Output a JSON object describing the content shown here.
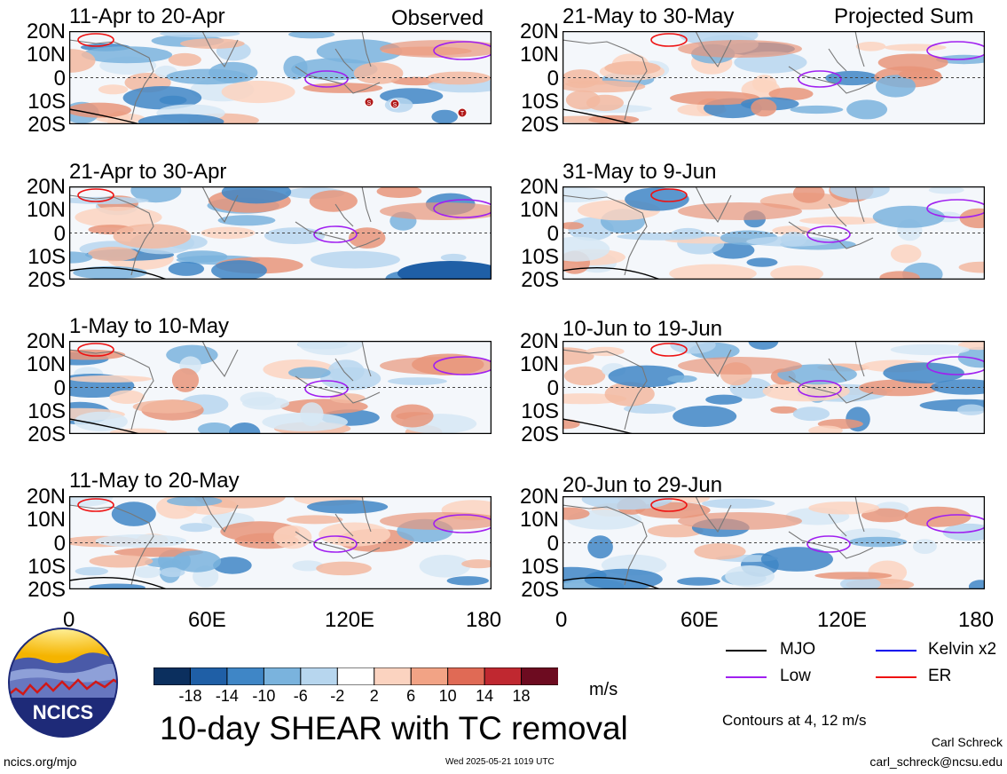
{
  "columns": {
    "left_tag": "Observed",
    "right_tag": "Projected Sum"
  },
  "panels_left": [
    {
      "title": "11-Apr to 20-Apr"
    },
    {
      "title": "21-Apr to 30-Apr"
    },
    {
      "title": "1-May to 10-May"
    },
    {
      "title": "11-May to 20-May"
    }
  ],
  "panels_right": [
    {
      "title": "21-May to 30-May"
    },
    {
      "title": "31-May to 9-Jun"
    },
    {
      "title": "10-Jun to 19-Jun"
    },
    {
      "title": "20-Jun to 29-Jun"
    }
  ],
  "lat_labels": [
    "20N",
    "10N",
    "0",
    "10S",
    "20S"
  ],
  "lon_labels": [
    "0",
    "60E",
    "120E",
    "180"
  ],
  "tc_markers": [
    "S",
    "S",
    "T"
  ],
  "legend": {
    "items": [
      {
        "label": "MJO",
        "color": "#000000"
      },
      {
        "label": "Kelvin x2",
        "color": "#0000ee"
      },
      {
        "label": "Low",
        "color": "#a020f0"
      },
      {
        "label": "ER",
        "color": "#ee1111"
      }
    ],
    "contours_note": "Contours at 4, 12 m/s"
  },
  "colorbar": {
    "unit": "m/s",
    "ticks": [
      "-18",
      "-14",
      "-10",
      "-6",
      "-2",
      "2",
      "6",
      "10",
      "14",
      "18"
    ],
    "colors": [
      "#0b2f5e",
      "#1f5fa6",
      "#3f86c6",
      "#7ab3dd",
      "#b7d6ee",
      "#ffffff",
      "#fbd3c0",
      "#f2a385",
      "#e06a55",
      "#c02830",
      "#6d0b20"
    ]
  },
  "main_title": "10-day SHEAR with TC removal",
  "logo_text": "NCICS",
  "footer": {
    "url": "ncics.org/mjo",
    "timestamp": "Wed 2025-05-21 1019 UTC",
    "author": "Carl Schreck",
    "email": "carl_schreck@ncsu.edu"
  }
}
